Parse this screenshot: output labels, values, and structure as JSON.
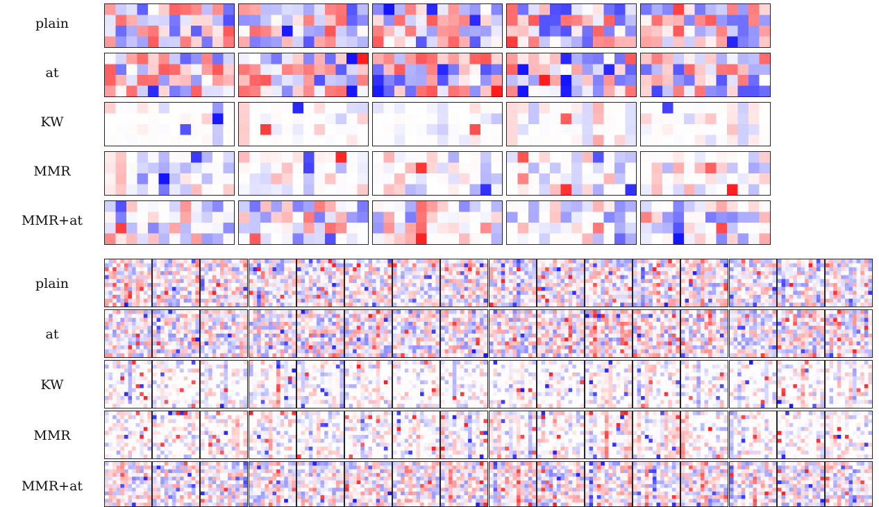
{
  "figure": {
    "top_block": {
      "rows": [
        "plain",
        "at",
        "KW",
        "MMR",
        "MMR+at"
      ],
      "panels_per_row": 5,
      "cell_grid": "4x12"
    },
    "bottom_block": {
      "rows": [
        "plain",
        "at",
        "KW",
        "MMR",
        "MMR+at"
      ],
      "panels_per_row": 16,
      "cell_grid": "12x12"
    },
    "colors": {
      "positive": "#ff0000",
      "negative": "#0000ff",
      "zero": "#ffffff",
      "border": "#222222"
    }
  }
}
